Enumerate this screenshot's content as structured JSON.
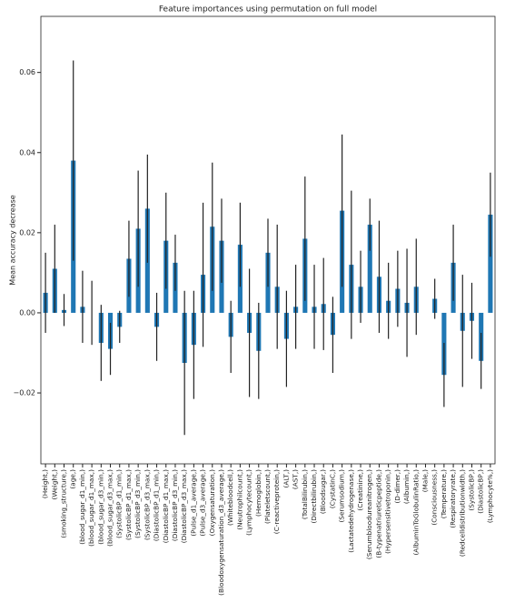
{
  "chart_data": {
    "type": "bar",
    "title": "Feature importances using permutation on full model",
    "ylabel": "Mean accuracy decrease",
    "color": "#1f77b4",
    "error_color": "#222222",
    "categories": [
      "(Height,)",
      "(Weight,)",
      "(smoking_structure,)",
      "(age,)",
      "(blood_sugar_d1_min,)",
      "(blood_sugar_d1_max,)",
      "(blood_sugar_d3_min,)",
      "(blood_sugar_d3_max,)",
      "(SystolicBP_d1_min,)",
      "(SystolicBP_d1_max,)",
      "(SystolicBP_d3_min,)",
      "(SystolicBP_d3_max,)",
      "(DiastolicBP_d1_min,)",
      "(DiastolicBP_d1_max,)",
      "(DiastolicBP_d3_min,)",
      "(DiastolicBP_d3_max,)",
      "(Pulse_d1_average,)",
      "(Pulse_d3_average,)",
      "(Oxygensaturation,)",
      "(Bloodoxygensaturation_d3_average,)",
      "(Whitebloodcell,)",
      "(Neutrophilcount,)",
      "(Lymphocytecount,)",
      "(Hemoglobin,)",
      "(Plateletscount,)",
      "(C-reactiveprotein,)",
      "(ALT,)",
      "(AST,)",
      "(TotalBilirubin,)",
      "(Directbilirubin,)",
      "(Bloodsugar,)",
      "(CystatinC,)",
      "(Serumsodium,)",
      "(Lactatedehydrogenase,)",
      "(Creatinine,)",
      "(Serumbloodureanitrogen,)",
      "(B-typenatriureticpeptide,)",
      "(Hypersensitivetroponin,)",
      "(D-dimer,)",
      "(Albumin,)",
      "(AlbuminToGlobulinRatio,)",
      "(Male,)",
      "(Consciousness,)",
      "(Temperature,)",
      "(Respiratoryrate,)",
      "(Redcelldistributionwidth,)",
      "(SystolicBP,)",
      "(DiastolicBP,)",
      "(Lymphocyte%,)"
    ],
    "values": [
      0.005,
      0.011,
      0.0007,
      0.038,
      0.0015,
      0.0,
      -0.0075,
      -0.009,
      -0.0035,
      0.0135,
      0.021,
      0.026,
      -0.0035,
      0.018,
      0.0125,
      -0.0125,
      -0.008,
      0.0095,
      0.0215,
      0.018,
      -0.006,
      0.017,
      -0.005,
      -0.0095,
      0.015,
      0.0065,
      -0.0065,
      0.0015,
      0.0185,
      0.0015,
      0.0022,
      -0.0055,
      0.0255,
      0.012,
      0.0065,
      0.022,
      0.009,
      0.003,
      0.006,
      0.0025,
      0.0065,
      0.0,
      0.0035,
      -0.0155,
      0.0125,
      -0.0045,
      -0.002,
      -0.012,
      0.0245
    ],
    "errors": [
      0.01,
      0.011,
      0.004,
      0.025,
      0.009,
      0.008,
      0.0095,
      0.0065,
      0.004,
      0.0095,
      0.0145,
      0.0135,
      0.0085,
      0.012,
      0.007,
      0.018,
      0.0135,
      0.018,
      0.016,
      0.0105,
      0.009,
      0.0105,
      0.016,
      0.012,
      0.0085,
      0.0155,
      0.012,
      0.0105,
      0.0155,
      0.0105,
      0.0115,
      0.0095,
      0.019,
      0.0185,
      0.009,
      0.0065,
      0.014,
      0.0095,
      0.0095,
      0.0135,
      0.012,
      0.0,
      0.005,
      0.008,
      0.0095,
      0.014,
      0.0095,
      0.007,
      0.0105
    ],
    "ylim": [
      -0.0377,
      0.074
    ],
    "yticks": [
      {
        "value": -0.02,
        "label": "−0.02"
      },
      {
        "value": 0,
        "label": "0.00"
      },
      {
        "value": 0.02,
        "label": "0.02"
      },
      {
        "value": 0.04,
        "label": "0.04"
      },
      {
        "value": 0.06,
        "label": "0.06"
      }
    ]
  }
}
